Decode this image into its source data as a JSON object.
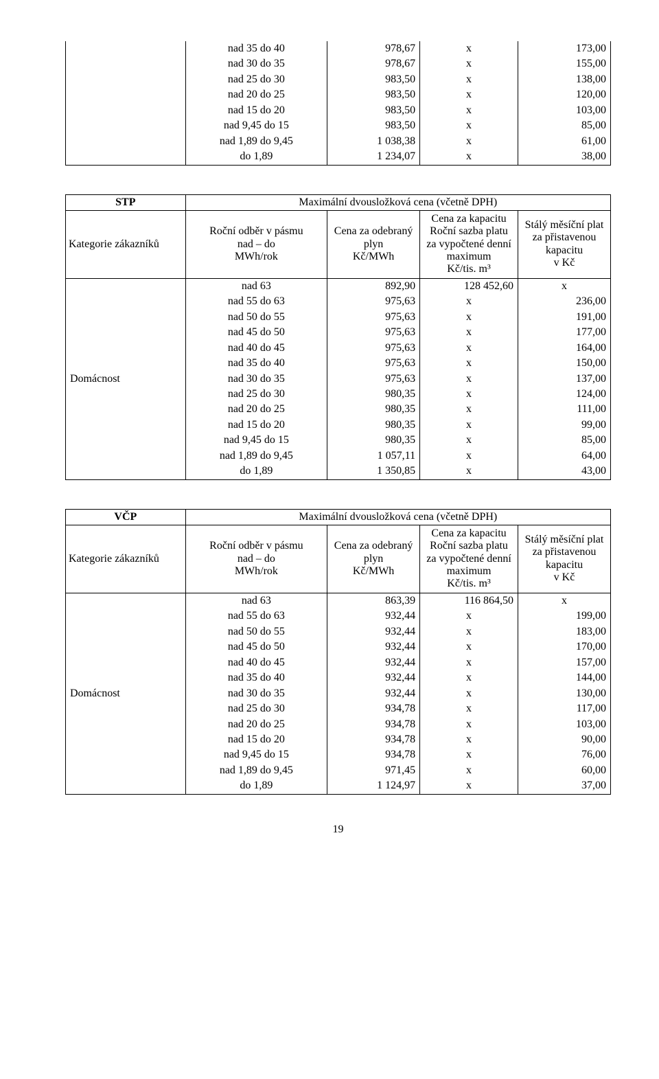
{
  "partial_table": {
    "col_widths": [
      "22%",
      "26%",
      "17%",
      "18%",
      "17%"
    ],
    "rows": [
      [
        "nad 35 do 40",
        "978,67",
        "x",
        "173,00"
      ],
      [
        "nad 30 do 35",
        "978,67",
        "x",
        "155,00"
      ],
      [
        "nad 25 do 30",
        "983,50",
        "x",
        "138,00"
      ],
      [
        "nad 20 do 25",
        "983,50",
        "x",
        "120,00"
      ],
      [
        "nad 15 do 20",
        "983,50",
        "x",
        "103,00"
      ],
      [
        "nad 9,45 do 15",
        "983,50",
        "x",
        "85,00"
      ],
      [
        "nad 1,89 do 9,45",
        "1 038,38",
        "x",
        "61,00"
      ],
      [
        "do 1,89",
        "1 234,07",
        "x",
        "38,00"
      ]
    ]
  },
  "sections": [
    {
      "org_label": "STP",
      "header_title": "Maximální dvousložková cena (včetně DPH)",
      "subheaders": {
        "cat": "Kategorie zákazníků",
        "band": "Roční odběr v pásmu\nnad – do\nMWh/rok",
        "gas": "Cena za odebraný\nplyn\nKč/MWh",
        "cap": "Cena za kapacitu\nRoční sazba platu\nza vypočtené denní\nmaximum\nKč/tis. m³",
        "fixed": "Stálý měsíční plat\nza přistavenou\nkapacitu\nv Kč"
      },
      "category_label": "Domácnost",
      "rows": [
        [
          "nad 63",
          "892,90",
          "128 452,60",
          "x"
        ],
        [
          "nad 55 do 63",
          "975,63",
          "x",
          "236,00"
        ],
        [
          "nad 50 do 55",
          "975,63",
          "x",
          "191,00"
        ],
        [
          "nad 45 do 50",
          "975,63",
          "x",
          "177,00"
        ],
        [
          "nad 40 do 45",
          "975,63",
          "x",
          "164,00"
        ],
        [
          "nad 35 do 40",
          "975,63",
          "x",
          "150,00"
        ],
        [
          "nad 30 do 35",
          "975,63",
          "x",
          "137,00"
        ],
        [
          "nad 25 do 30",
          "980,35",
          "x",
          "124,00"
        ],
        [
          "nad 20 do 25",
          "980,35",
          "x",
          "111,00"
        ],
        [
          "nad 15 do 20",
          "980,35",
          "x",
          "99,00"
        ],
        [
          "nad 9,45 do 15",
          "980,35",
          "x",
          "85,00"
        ],
        [
          "nad 1,89 do 9,45",
          "1 057,11",
          "x",
          "64,00"
        ],
        [
          "do 1,89",
          "1 350,85",
          "x",
          "43,00"
        ]
      ]
    },
    {
      "org_label": "VČP",
      "header_title": "Maximální dvousložková cena (včetně DPH)",
      "subheaders": {
        "cat": "Kategorie zákazníků",
        "band": "Roční odběr v pásmu\nnad – do\nMWh/rok",
        "gas": "Cena za odebraný\nplyn\nKč/MWh",
        "cap": "Cena za kapacitu\nRoční sazba platu\nza vypočtené denní\nmaximum\nKč/tis. m³",
        "fixed": "Stálý měsíční plat\nza přistavenou\nkapacitu\nv Kč"
      },
      "category_label": "Domácnost",
      "rows": [
        [
          "nad 63",
          "863,39",
          "116 864,50",
          "x"
        ],
        [
          "nad 55 do 63",
          "932,44",
          "x",
          "199,00"
        ],
        [
          "nad 50 do 55",
          "932,44",
          "x",
          "183,00"
        ],
        [
          "nad 45 do 50",
          "932,44",
          "x",
          "170,00"
        ],
        [
          "nad 40 do 45",
          "932,44",
          "x",
          "157,00"
        ],
        [
          "nad 35 do 40",
          "932,44",
          "x",
          "144,00"
        ],
        [
          "nad 30 do 35",
          "932,44",
          "x",
          "130,00"
        ],
        [
          "nad 25 do 30",
          "934,78",
          "x",
          "117,00"
        ],
        [
          "nad 20 do 25",
          "934,78",
          "x",
          "103,00"
        ],
        [
          "nad 15 do 20",
          "934,78",
          "x",
          "90,00"
        ],
        [
          "nad 9,45 do 15",
          "934,78",
          "x",
          "76,00"
        ],
        [
          "nad 1,89 do 9,45",
          "971,45",
          "x",
          "60,00"
        ],
        [
          "do 1,89",
          "1 124,97",
          "x",
          "37,00"
        ]
      ]
    }
  ],
  "page_number": "19"
}
